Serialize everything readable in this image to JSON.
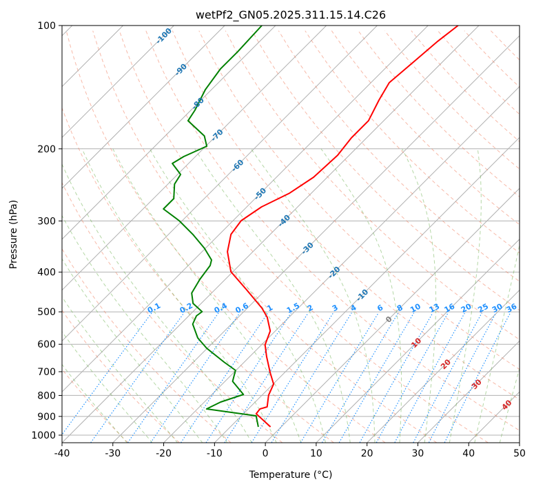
{
  "chart_data": {
    "type": "line",
    "subtype": "skew-t log-p",
    "title": "wetPf2_GN05.2025.311.15.14.C26",
    "xlabel": "Temperature (°C)",
    "ylabel": "Pressure (hPa)",
    "xlim": [
      -40,
      50
    ],
    "ylim": [
      1043,
      100
    ],
    "xticks": [
      -40,
      -30,
      -20,
      -10,
      0,
      10,
      20,
      30,
      40,
      50
    ],
    "yticks": [
      100,
      200,
      300,
      400,
      500,
      600,
      700,
      800,
      900,
      1000
    ],
    "grid": true,
    "series": [
      {
        "name": "Temperature",
        "color": "#ff0000",
        "points": [
          [
            954.6,
            -2.1
          ],
          [
            886.8,
            -7.5
          ],
          [
            863,
            -7.7
          ],
          [
            853,
            -6.7
          ],
          [
            799,
            -8.7
          ],
          [
            750.6,
            -9.9
          ],
          [
            702.7,
            -12.9
          ],
          [
            642.9,
            -16.7
          ],
          [
            601.9,
            -19.3
          ],
          [
            556.9,
            -21.0
          ],
          [
            515.4,
            -24.3
          ],
          [
            489.9,
            -27.1
          ],
          [
            441.4,
            -33.8
          ],
          [
            399,
            -40.4
          ],
          [
            356.6,
            -45.0
          ],
          [
            323.6,
            -47.7
          ],
          [
            299.5,
            -48.4
          ],
          [
            277.2,
            -47.1
          ],
          [
            256.6,
            -44.3
          ],
          [
            234.6,
            -42.7
          ],
          [
            207.3,
            -42.3
          ],
          [
            188.1,
            -43.0
          ],
          [
            170.8,
            -43.0
          ],
          [
            152,
            -45.0
          ],
          [
            137.9,
            -46.4
          ],
          [
            122.8,
            -45.7
          ],
          [
            109.3,
            -45.0
          ],
          [
            100,
            -44.1
          ]
        ]
      },
      {
        "name": "Dewpoint",
        "color": "#008000",
        "points": [
          [
            954.6,
            -4.5
          ],
          [
            897.2,
            -7.1
          ],
          [
            863,
            -18.2
          ],
          [
            830.2,
            -16.8
          ],
          [
            795.7,
            -13.8
          ],
          [
            739,
            -18.5
          ],
          [
            694.7,
            -20.1
          ],
          [
            663,
            -24.0
          ],
          [
            613.6,
            -30.1
          ],
          [
            578.9,
            -33.9
          ],
          [
            535.8,
            -37.6
          ],
          [
            511.4,
            -38.5
          ],
          [
            499.6,
            -38.2
          ],
          [
            476.9,
            -41.6
          ],
          [
            450,
            -43.9
          ],
          [
            416.4,
            -45.0
          ],
          [
            385.3,
            -45.7
          ],
          [
            373.6,
            -46.5
          ],
          [
            349.8,
            -50.2
          ],
          [
            323.6,
            -55.2
          ],
          [
            299.5,
            -60.6
          ],
          [
            280.4,
            -66.0
          ],
          [
            264.6,
            -66.0
          ],
          [
            243.9,
            -68.7
          ],
          [
            231,
            -69.4
          ],
          [
            217.1,
            -73.2
          ],
          [
            208.9,
            -72.3
          ],
          [
            197.1,
            -69.8
          ],
          [
            186,
            -72.3
          ],
          [
            170.8,
            -78.5
          ],
          [
            161.1,
            -79.2
          ],
          [
            143.4,
            -81.2
          ],
          [
            127.7,
            -82.3
          ],
          [
            115.9,
            -82.3
          ],
          [
            100,
            -82.7
          ]
        ]
      }
    ],
    "isotherm_labels": [
      {
        "text": "-100",
        "color": "#1f77b4"
      },
      {
        "text": "-90",
        "color": "#1f77b4"
      },
      {
        "text": "-80",
        "color": "#1f77b4"
      },
      {
        "text": "-70",
        "color": "#1f77b4"
      },
      {
        "text": "-60",
        "color": "#1f77b4"
      },
      {
        "text": "-50",
        "color": "#1f77b4"
      },
      {
        "text": "-40",
        "color": "#1f77b4"
      },
      {
        "text": "-30",
        "color": "#1f77b4"
      },
      {
        "text": "-20",
        "color": "#1f77b4"
      },
      {
        "text": "-10",
        "color": "#1f77b4"
      },
      {
        "text": "0",
        "color": "#7f7f7f"
      },
      {
        "text": "10",
        "color": "#d62728"
      },
      {
        "text": "20",
        "color": "#d62728"
      },
      {
        "text": "30",
        "color": "#d62728"
      },
      {
        "text": "40",
        "color": "#d62728"
      }
    ],
    "mixing_ratio_labels": [
      "0.1",
      "0.2",
      "0.4",
      "0.6",
      "1",
      "1.5",
      "2",
      "3",
      "4",
      "6",
      "8",
      "10",
      "13",
      "16",
      "20",
      "25",
      "30",
      "36"
    ],
    "colors": {
      "dry_adiabat": "#f08060",
      "moist_adiabat": "#6ab04c",
      "mixing_ratio": "#1e90ff",
      "grid": "#b0b0b0"
    }
  }
}
